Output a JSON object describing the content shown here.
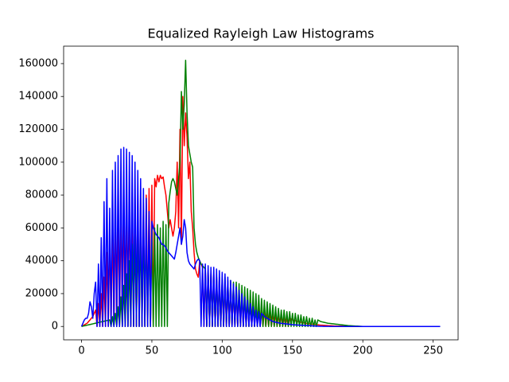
{
  "chart_data": {
    "type": "line",
    "title": "Equalized Rayleigh Law Histograms",
    "x": [
      0,
      1,
      2,
      3,
      4,
      5,
      6,
      7,
      8,
      9,
      10,
      11,
      12,
      13,
      14,
      15,
      16,
      17,
      18,
      19,
      20,
      21,
      22,
      23,
      24,
      25,
      26,
      27,
      28,
      29,
      30,
      31,
      32,
      33,
      34,
      35,
      36,
      37,
      38,
      39,
      40,
      41,
      42,
      43,
      44,
      45,
      46,
      47,
      48,
      49,
      50,
      51,
      52,
      53,
      54,
      55,
      56,
      57,
      58,
      59,
      60,
      61,
      62,
      63,
      64,
      65,
      66,
      67,
      68,
      69,
      70,
      71,
      72,
      73,
      74,
      75,
      76,
      77,
      78,
      79,
      80,
      81,
      82,
      83,
      84,
      85,
      86,
      87,
      88,
      89,
      90,
      91,
      92,
      93,
      94,
      95,
      96,
      97,
      98,
      99,
      100,
      101,
      102,
      103,
      104,
      105,
      106,
      107,
      108,
      109,
      110,
      111,
      112,
      113,
      114,
      115,
      116,
      117,
      118,
      119,
      120,
      121,
      122,
      123,
      124,
      125,
      126,
      127,
      128,
      129,
      130,
      131,
      132,
      133,
      134,
      135,
      136,
      137,
      138,
      139,
      140,
      141,
      142,
      143,
      144,
      145,
      146,
      147,
      148,
      149,
      150,
      151,
      152,
      153,
      154,
      155,
      156,
      157,
      158,
      159,
      160,
      161,
      162,
      163,
      164,
      165,
      166,
      167,
      168,
      169,
      170,
      171,
      172,
      173,
      174,
      175,
      176,
      177,
      178,
      179,
      180,
      181,
      182,
      183,
      184,
      185,
      186,
      187,
      188,
      189,
      190,
      191,
      192,
      193,
      194,
      195,
      196,
      197,
      198,
      199,
      200,
      201,
      202,
      203,
      204,
      205,
      206,
      207,
      208,
      209,
      210,
      211,
      212,
      213,
      214,
      215,
      216,
      217,
      218,
      219,
      220,
      221,
      222,
      223,
      224,
      225,
      226,
      227,
      228,
      229,
      230,
      231,
      232,
      233,
      234,
      235,
      236,
      237,
      238,
      239,
      240,
      241,
      242,
      243,
      244,
      245,
      246,
      247,
      248,
      249,
      250,
      251,
      252,
      253,
      254,
      255
    ],
    "series": [
      {
        "color": "#ff0000",
        "values": [
          0,
          500,
          1000,
          1500,
          2000,
          3000,
          4000,
          5000,
          6000,
          8000,
          10000,
          0,
          14000,
          0,
          20000,
          0,
          30000,
          0,
          45000,
          0,
          55000,
          0,
          62000,
          0,
          68000,
          0,
          72000,
          0,
          75000,
          0,
          78000,
          0,
          80000,
          0,
          82000,
          0,
          82000,
          0,
          80000,
          0,
          80000,
          0,
          78000,
          0,
          75000,
          0,
          80000,
          0,
          84000,
          0,
          86000,
          0,
          90000,
          85000,
          92000,
          88000,
          92000,
          90000,
          91000,
          85000,
          80000,
          70000,
          60000,
          65000,
          60000,
          55000,
          60000,
          70000,
          100000,
          60000,
          120000,
          50000,
          140000,
          110000,
          130000,
          115000,
          90000,
          100000,
          70000,
          60000,
          45000,
          35000,
          32000,
          30000,
          40000,
          38000,
          36000,
          0,
          35000,
          0,
          34000,
          0,
          33000,
          0,
          32000,
          0,
          30000,
          0,
          30000,
          0,
          28000,
          0,
          27000,
          0,
          26000,
          0,
          25000,
          0,
          24000,
          0,
          22000,
          0,
          21000,
          0,
          20000,
          0,
          19000,
          0,
          18000,
          0,
          16000,
          0,
          15000,
          0,
          14000,
          0,
          13000,
          0,
          12000,
          0,
          11000,
          0,
          10000,
          0,
          9000,
          0,
          8500,
          0,
          8000,
          0,
          7500,
          0,
          7000,
          0,
          6000,
          0,
          5500,
          0,
          5000,
          4500,
          4000,
          3800,
          3500,
          3200,
          3000,
          2800,
          2600,
          2400,
          2200,
          2000,
          1800,
          1700,
          1600,
          1500,
          1400,
          1300,
          1200,
          1100,
          1000,
          900,
          800,
          750,
          700,
          650,
          600,
          550,
          500,
          450,
          400,
          350,
          300,
          280,
          260,
          240,
          220,
          200,
          180,
          160,
          140,
          120,
          100,
          90,
          80,
          70,
          60,
          50,
          40,
          30,
          20,
          10,
          0,
          0,
          0,
          0,
          0,
          0,
          0,
          0,
          0,
          0,
          0,
          0,
          0,
          0,
          0,
          0,
          0,
          0,
          0,
          0,
          0,
          0,
          0,
          0,
          0,
          0,
          0,
          0,
          0,
          0,
          0,
          0,
          0,
          0,
          0,
          0,
          0,
          0,
          0,
          0,
          0,
          0,
          0,
          0,
          0,
          0,
          0,
          0,
          0,
          0,
          0,
          0,
          0,
          0,
          0,
          0
        ]
      },
      {
        "color": "#008000",
        "values": [
          0,
          200,
          400,
          600,
          800,
          1000,
          1200,
          1400,
          1600,
          1800,
          2000,
          2200,
          2400,
          2600,
          2800,
          3000,
          3200,
          3400,
          3600,
          3800,
          4000,
          0,
          6000,
          0,
          8000,
          0,
          12000,
          0,
          18000,
          0,
          25000,
          0,
          32000,
          0,
          40000,
          0,
          50000,
          0,
          55000,
          0,
          58000,
          0,
          60000,
          0,
          62000,
          0,
          62000,
          0,
          62000,
          0,
          60000,
          0,
          60000,
          0,
          62000,
          0,
          60000,
          0,
          64000,
          0,
          62000,
          0,
          75000,
          82000,
          88000,
          90000,
          88000,
          84000,
          80000,
          90000,
          100000,
          143000,
          120000,
          135000,
          162000,
          130000,
          110000,
          105000,
          100000,
          97000,
          60000,
          50000,
          45000,
          42000,
          40000,
          38000,
          37000,
          36000,
          35000,
          0,
          33000,
          0,
          32000,
          0,
          31000,
          0,
          30000,
          0,
          30000,
          0,
          29000,
          0,
          30000,
          0,
          28000,
          0,
          28000,
          0,
          27000,
          0,
          27000,
          0,
          26000,
          0,
          25000,
          0,
          24000,
          0,
          23000,
          0,
          22000,
          0,
          21000,
          0,
          20000,
          0,
          19000,
          0,
          17000,
          0,
          16000,
          0,
          15000,
          0,
          14000,
          0,
          13000,
          0,
          12000,
          0,
          11000,
          0,
          10000,
          0,
          10000,
          0,
          9000,
          0,
          9000,
          0,
          8000,
          0,
          8000,
          0,
          7000,
          0,
          7000,
          0,
          6000,
          0,
          6000,
          0,
          5000,
          0,
          5000,
          0,
          4000,
          0,
          4000,
          3500,
          3000,
          2800,
          2600,
          2400,
          2200,
          2000,
          1900,
          1800,
          1700,
          1600,
          1500,
          1400,
          1300,
          1200,
          1100,
          1000,
          900,
          800,
          700,
          600,
          500,
          450,
          400,
          350,
          300,
          250,
          200,
          150,
          100,
          50,
          0,
          0,
          0,
          0,
          0,
          0,
          0,
          0,
          0,
          0,
          0,
          0,
          0,
          0,
          0,
          0,
          0,
          0,
          0,
          0,
          0,
          0,
          0,
          0,
          0,
          0,
          0,
          0,
          0,
          0,
          0,
          0,
          0,
          0,
          0,
          0,
          0,
          0,
          0,
          0,
          0,
          0,
          0,
          0,
          0,
          0,
          0,
          0,
          0,
          0,
          0,
          0,
          0,
          0,
          0,
          0
        ]
      },
      {
        "color": "#0000ff",
        "values": [
          0,
          2000,
          4000,
          5000,
          5000,
          8000,
          15000,
          12000,
          5000,
          20000,
          27000,
          0,
          38000,
          0,
          54000,
          0,
          76000,
          0,
          90000,
          0,
          72000,
          0,
          95000,
          0,
          100000,
          0,
          104000,
          0,
          108000,
          0,
          109000,
          0,
          108000,
          0,
          106000,
          0,
          104000,
          0,
          100000,
          0,
          95000,
          0,
          90000,
          0,
          84000,
          0,
          78000,
          0,
          70000,
          0,
          64000,
          60000,
          58000,
          56000,
          55000,
          54000,
          52000,
          50000,
          50000,
          49000,
          48000,
          46000,
          45000,
          44000,
          43000,
          42000,
          41000,
          45000,
          50000,
          55000,
          60000,
          50000,
          55000,
          65000,
          60000,
          45000,
          40000,
          38000,
          37000,
          36000,
          35000,
          38000,
          40000,
          41000,
          40000,
          0,
          38000,
          0,
          38000,
          0,
          37000,
          0,
          36000,
          0,
          36000,
          0,
          35000,
          0,
          34000,
          0,
          33000,
          0,
          32000,
          0,
          30000,
          0,
          28000,
          0,
          26000,
          0,
          24000,
          0,
          22000,
          0,
          20000,
          0,
          18000,
          0,
          16000,
          0,
          14000,
          0,
          12000,
          0,
          10000,
          0,
          9000,
          0,
          8000,
          7000,
          6000,
          5500,
          5000,
          4500,
          4000,
          3500,
          3000,
          2800,
          2600,
          2400,
          2200,
          2000,
          1900,
          1800,
          1700,
          1600,
          1500,
          1400,
          1300,
          1200,
          1100,
          1000,
          950,
          900,
          850,
          800,
          750,
          700,
          650,
          600,
          550,
          500,
          450,
          400,
          350,
          300,
          250,
          200,
          150,
          100,
          90,
          80,
          70,
          60,
          50,
          40,
          30,
          20,
          10,
          0,
          0,
          0,
          0,
          0,
          0,
          0,
          0,
          0,
          0,
          0,
          0,
          0,
          0,
          0,
          0,
          0,
          0,
          0,
          0,
          0,
          0,
          0,
          0,
          0,
          0,
          0,
          0,
          0,
          0,
          0,
          0,
          0,
          0,
          0,
          0,
          0,
          0,
          0,
          0,
          0,
          0,
          0,
          0,
          0,
          0,
          0,
          0,
          0,
          0,
          0,
          0,
          0,
          0,
          0,
          0,
          0,
          0,
          0,
          0,
          0,
          0,
          0,
          0,
          0,
          0,
          0,
          0,
          0,
          0,
          0,
          0,
          0,
          0,
          0,
          0,
          0
        ]
      }
    ],
    "xlim": [
      -12.75,
      267.75
    ],
    "xticks": [
      0,
      50,
      100,
      150,
      200,
      250
    ],
    "ylim": [
      -8125,
      170625
    ],
    "yticks": [
      0,
      20000,
      40000,
      60000,
      80000,
      100000,
      120000,
      140000,
      160000
    ]
  }
}
